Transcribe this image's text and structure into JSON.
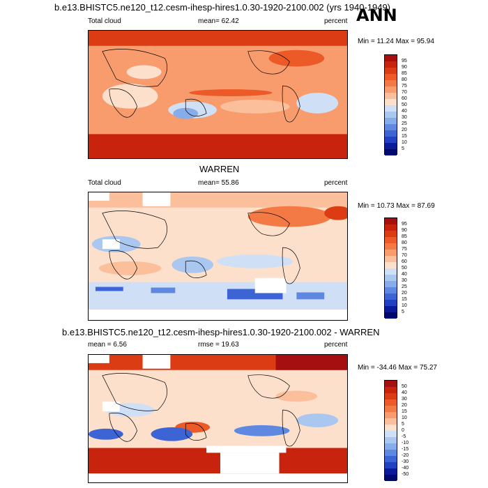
{
  "header": {
    "case_title": "b.e13.BHISTC5.ne120_t12.cesm-ihesp-hires1.0.30-1920-2100.002 (yrs 1940-1949)",
    "season": "ANN"
  },
  "panels": [
    {
      "title": "",
      "left_label": "Total cloud",
      "center_label": "mean=  62.42",
      "right_label": "percent",
      "minmax": "Min =  11.24 Max =  95.94",
      "levels": [
        "95",
        "90",
        "85",
        "80",
        "75",
        "70",
        "60",
        "50",
        "40",
        "30",
        "25",
        "20",
        "15",
        "10",
        "5"
      ]
    },
    {
      "title": "WARREN",
      "left_label": "Total cloud",
      "center_label": "mean=  55.86",
      "right_label": "percent",
      "minmax": "Min =  10.73 Max =  87.69",
      "levels": [
        "95",
        "90",
        "85",
        "80",
        "75",
        "70",
        "60",
        "50",
        "40",
        "30",
        "25",
        "20",
        "15",
        "10",
        "5"
      ]
    },
    {
      "title": "b.e13.BHISTC5.ne120_t12.cesm-ihesp-hires1.0.30-1920-2100.002 - WARREN",
      "left_label": "mean =   6.56",
      "center_label": "rmse =  19.63",
      "right_label": "percent",
      "minmax": "Min = -34.46 Max =  75.27",
      "levels": [
        "50",
        "40",
        "30",
        "20",
        "15",
        "10",
        "5",
        "0",
        "-5",
        "-10",
        "-15",
        "-20",
        "-30",
        "-40",
        "-50"
      ]
    }
  ],
  "colors": {
    "scale_top_to_bottom": [
      "#a50f0f",
      "#c8230c",
      "#dc3c14",
      "#ec5a28",
      "#f47a45",
      "#f89c6e",
      "#fbbf9c",
      "#fde0cc",
      "#cfe0f6",
      "#aac7f0",
      "#86acea",
      "#5f88e0",
      "#3d64d4",
      "#2140c2",
      "#0a1a9a",
      "#000a6e"
    ]
  }
}
